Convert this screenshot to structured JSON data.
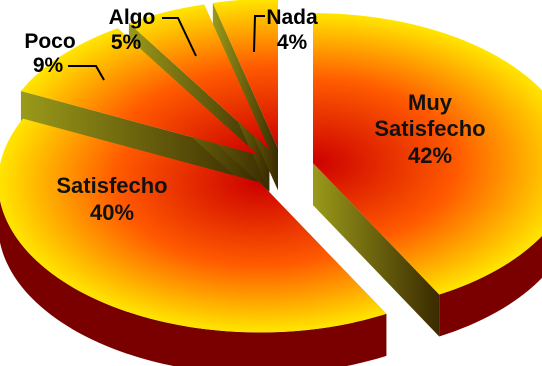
{
  "chart_data": {
    "type": "pie",
    "style": "3d-exploded",
    "slices": [
      {
        "label_lines": [
          "Muy",
          "Satisfecho"
        ],
        "pct_label": "42%",
        "value": 42
      },
      {
        "label_lines": [
          "Satisfecho"
        ],
        "pct_label": "40%",
        "value": 40
      },
      {
        "label_lines": [
          "Poco"
        ],
        "pct_label": "9%",
        "value": 9
      },
      {
        "label_lines": [
          "Algo"
        ],
        "pct_label": "5%",
        "value": 5
      },
      {
        "label_lines": [
          "Nada"
        ],
        "pct_label": "4%",
        "value": 4
      }
    ],
    "colors": {
      "gradient_outer": "#ffe600",
      "gradient_mid": "#ff5a00",
      "gradient_inner": "#cc0000",
      "side_light": "#9a9a1a",
      "side_dark": "#3a2a00"
    },
    "legend": "none",
    "grid": false
  }
}
